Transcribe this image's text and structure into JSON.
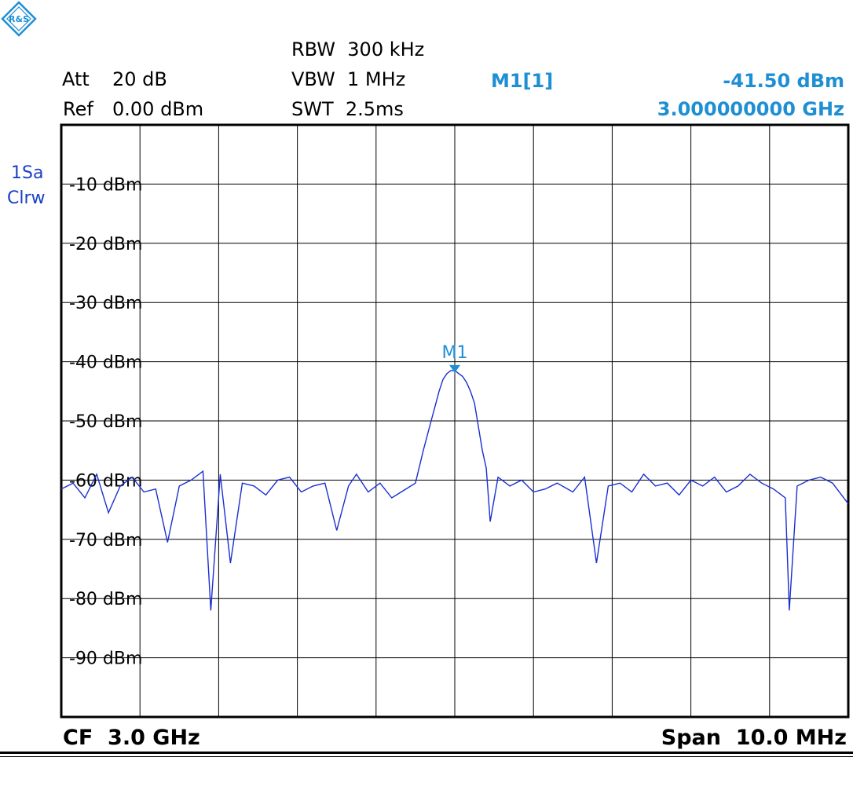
{
  "header": {
    "att_label": "Att",
    "att_value": "20 dB",
    "ref_label": "Ref",
    "ref_value": "0.00 dBm",
    "rbw": "RBW  300 kHz",
    "vbw": "VBW  1 MHz",
    "swt": "SWT  2.5ms",
    "marker_label": "M1[1]",
    "marker_level": "-41.50 dBm",
    "marker_freq": "3.000000000 GHz"
  },
  "trace_info": {
    "line1": "1Sa",
    "line2": "Clrw"
  },
  "footer": {
    "center": "CF  3.0 GHz",
    "span": "Span  10.0 MHz"
  },
  "colors": {
    "trace": "#1a2fd0",
    "marker": "#1f8fd4",
    "grid": "#000000"
  },
  "chart_data": {
    "type": "line",
    "x_unit": "MHz offset from CF",
    "xlim": [
      -5,
      5
    ],
    "ylim": [
      -100,
      0
    ],
    "grid": true,
    "yticks": [
      {
        "value": -10,
        "label": "-10 dBm"
      },
      {
        "value": -20,
        "label": "-20 dBm"
      },
      {
        "value": -30,
        "label": "-30 dBm"
      },
      {
        "value": -40,
        "label": "-40 dBm"
      },
      {
        "value": -50,
        "label": "-50 dBm"
      },
      {
        "value": -60,
        "label": "-60 dBm"
      },
      {
        "value": -70,
        "label": "-70 dBm"
      },
      {
        "value": -80,
        "label": "-80 dBm"
      },
      {
        "value": -90,
        "label": "-90 dBm"
      }
    ],
    "marker": {
      "label": "M1",
      "x": 0.0,
      "y": -41.5
    },
    "trace": {
      "x": [
        -5.0,
        -4.85,
        -4.7,
        -4.55,
        -4.4,
        -4.25,
        -4.1,
        -3.95,
        -3.8,
        -3.65,
        -3.5,
        -3.35,
        -3.2,
        -3.1,
        -2.98,
        -2.85,
        -2.7,
        -2.55,
        -2.4,
        -2.25,
        -2.1,
        -1.95,
        -1.8,
        -1.65,
        -1.5,
        -1.35,
        -1.25,
        -1.1,
        -0.95,
        -0.8,
        -0.5,
        -0.4,
        -0.3,
        -0.25,
        -0.2,
        -0.15,
        -0.1,
        -0.05,
        0.0,
        0.05,
        0.1,
        0.15,
        0.2,
        0.25,
        0.3,
        0.35,
        0.4,
        0.45,
        0.55,
        0.7,
        0.85,
        1.0,
        1.15,
        1.3,
        1.5,
        1.65,
        1.8,
        1.95,
        2.1,
        2.25,
        2.4,
        2.55,
        2.7,
        2.85,
        3.0,
        3.15,
        3.3,
        3.45,
        3.6,
        3.75,
        3.9,
        4.05,
        4.2,
        4.25,
        4.35,
        4.5,
        4.65,
        4.8,
        5.0
      ],
      "y": [
        -61.5,
        -60.5,
        -63,
        -59,
        -65.5,
        -61,
        -59.5,
        -62,
        -61.5,
        -70.5,
        -61,
        -60,
        -58.5,
        -82,
        -59,
        -74,
        -60.5,
        -61,
        -62.5,
        -60,
        -59.5,
        -62,
        -61,
        -60.5,
        -68.5,
        -61,
        -59,
        -62,
        -60.5,
        -63,
        -60.5,
        -55,
        -50,
        -47.5,
        -45,
        -43,
        -42,
        -41.5,
        -41.5,
        -42,
        -42.5,
        -43.5,
        -45,
        -47,
        -51,
        -55,
        -58,
        -67,
        -59.5,
        -61,
        -60,
        -62,
        -61.5,
        -60.5,
        -62,
        -59.5,
        -74,
        -61,
        -60.5,
        -62,
        -59,
        -61,
        -60.5,
        -62.5,
        -60,
        -61,
        -59.5,
        -62,
        -61,
        -59,
        -60.5,
        -61.5,
        -63,
        -82,
        -61,
        -60,
        -59.5,
        -60.5,
        -64
      ]
    }
  }
}
